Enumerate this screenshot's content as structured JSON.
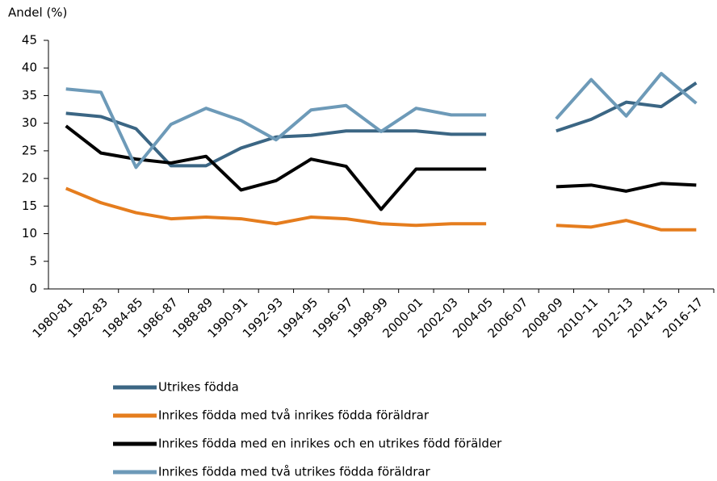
{
  "chart_data": {
    "type": "line",
    "y_label": "Andel (%)",
    "categories": [
      "1980-81",
      "1982-83",
      "1984-85",
      "1986-87",
      "1988-89",
      "1990-91",
      "1992-93",
      "1994-95",
      "1996-97",
      "1998-99",
      "2000-01",
      "2002-03",
      "2004-05",
      "2006-07",
      "2008-09",
      "2010-11",
      "2012-13",
      "2014-15",
      "2016-17"
    ],
    "series": [
      {
        "name": "Utrikes födda",
        "color": "#3b6684",
        "values": [
          31.8,
          31.2,
          29,
          22.3,
          22.3,
          25.5,
          27.5,
          27.8,
          28.6,
          28.6,
          28.6,
          28,
          28,
          null,
          28.6,
          30.7,
          33.8,
          33,
          37.3
        ]
      },
      {
        "name": "Inrikes födda med två inrikes födda föräldrar",
        "color": "#e57d1e",
        "values": [
          18.2,
          15.6,
          13.8,
          12.7,
          13,
          12.7,
          11.8,
          13,
          12.7,
          11.8,
          11.5,
          11.8,
          11.8,
          null,
          11.5,
          11.2,
          12.4,
          10.7,
          10.7
        ]
      },
      {
        "name": "Inrikes födda med en inrikes och en utrikes född förälder",
        "color": "#000000",
        "values": [
          29.5,
          24.6,
          23.5,
          22.8,
          24,
          17.9,
          19.6,
          23.5,
          22.2,
          14.4,
          21.7,
          21.7,
          21.7,
          null,
          18.5,
          18.8,
          17.7,
          19.1,
          18.8
        ]
      },
      {
        "name": "Inrikes födda med två utrikes födda föräldrar",
        "color": "#6d9ab8",
        "values": [
          36.2,
          35.6,
          22,
          29.8,
          32.7,
          30.5,
          27,
          32.4,
          33.2,
          28.5,
          32.7,
          31.5,
          31.5,
          null,
          30.8,
          37.9,
          31.3,
          39,
          33.6
        ]
      }
    ],
    "ylim": [
      0,
      45
    ],
    "yticks": [
      0,
      5,
      10,
      15,
      20,
      25,
      30,
      35,
      40,
      45
    ],
    "grid": false
  }
}
